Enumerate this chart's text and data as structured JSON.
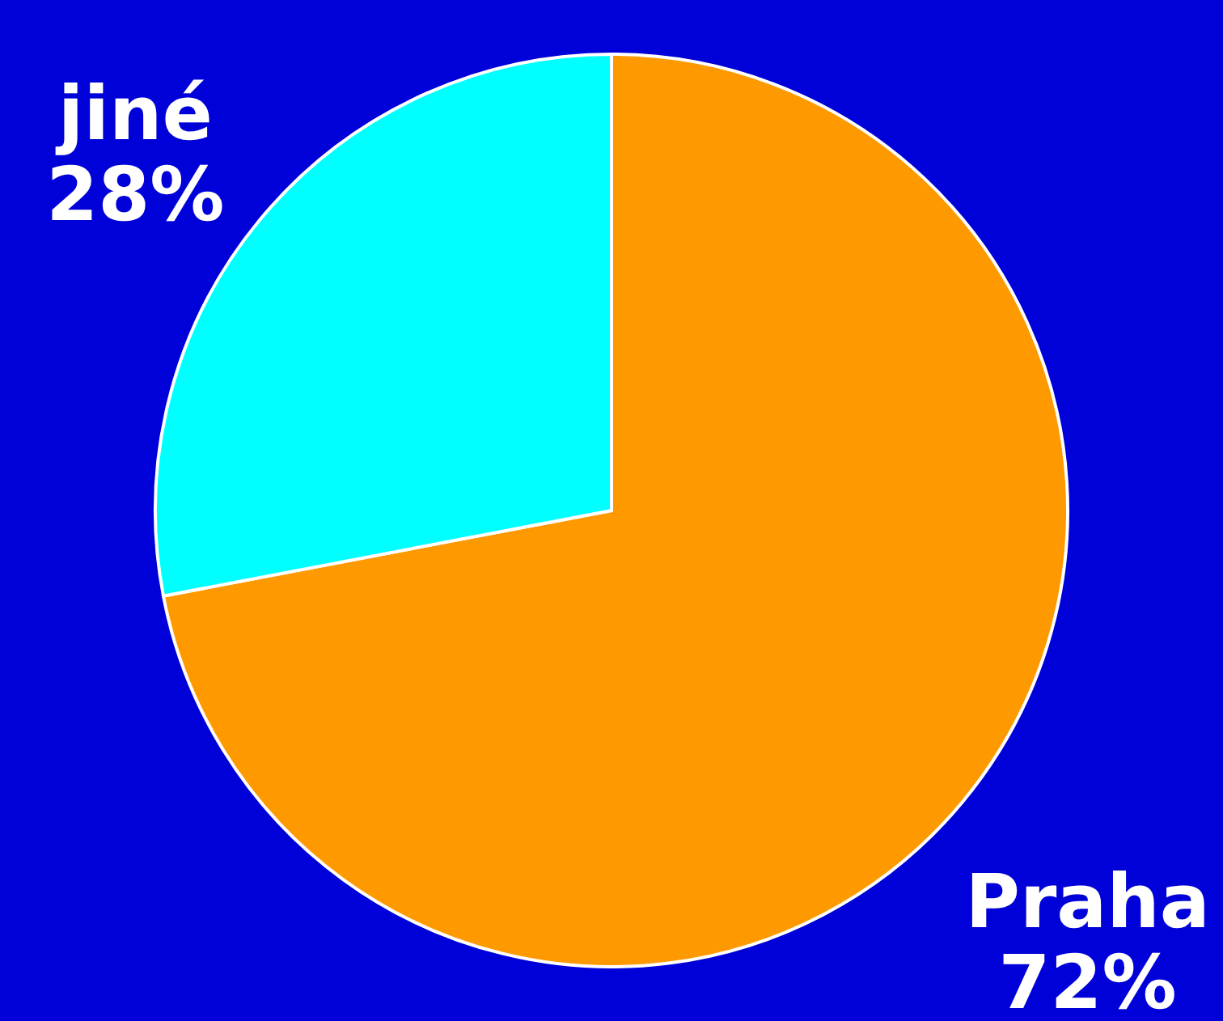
{
  "chart_data": {
    "type": "pie",
    "categories": [
      "Praha",
      "jiné"
    ],
    "values": [
      72,
      28
    ],
    "colors": [
      "#ff9900",
      "#00ffff"
    ],
    "value_labels": [
      "72%",
      "28%"
    ]
  }
}
